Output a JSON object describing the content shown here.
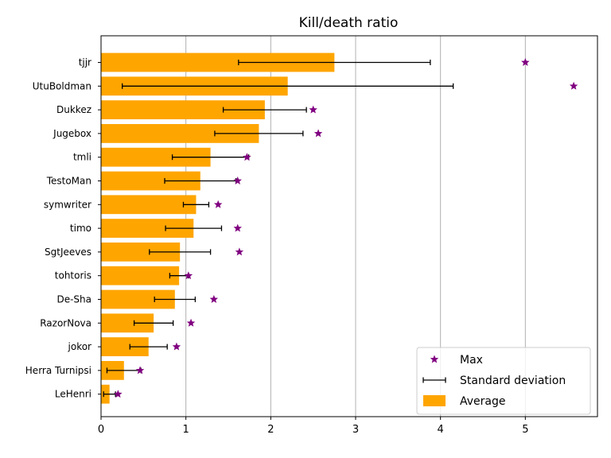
{
  "chart_data": {
    "type": "bar",
    "orientation": "horizontal",
    "title": "Kill/death ratio",
    "xlabel": "",
    "ylabel": "",
    "xlim": [
      0,
      5.85
    ],
    "xticks": [
      0,
      1,
      2,
      3,
      4,
      5
    ],
    "grid": "vertical",
    "legend_position": "bottom-right",
    "categories": [
      "tjjr",
      "UtuBoldman",
      "Dukkez",
      "Jugebox",
      "tmli",
      "TestoMan",
      "symwriter",
      "timo",
      "SgtJeeves",
      "tohtoris",
      "De-Sha",
      "RazorNova",
      "jokor",
      "Herra Turnipsi",
      "LeHenri"
    ],
    "series": [
      {
        "name": "Average",
        "color": "#ffa500",
        "values": [
          2.75,
          2.2,
          1.93,
          1.86,
          1.29,
          1.17,
          1.12,
          1.09,
          0.93,
          0.92,
          0.87,
          0.62,
          0.56,
          0.27,
          0.1
        ]
      },
      {
        "name": "Standard deviation",
        "color": "#000000",
        "values": [
          1.13,
          1.95,
          0.49,
          0.52,
          0.45,
          0.42,
          0.15,
          0.33,
          0.36,
          0.11,
          0.24,
          0.23,
          0.22,
          0.2,
          0.07
        ]
      },
      {
        "name": "Max",
        "color": "#800080",
        "values": [
          5.0,
          5.57,
          2.5,
          2.56,
          1.72,
          1.61,
          1.38,
          1.61,
          1.63,
          1.03,
          1.33,
          1.06,
          0.89,
          0.46,
          0.2
        ]
      }
    ]
  }
}
